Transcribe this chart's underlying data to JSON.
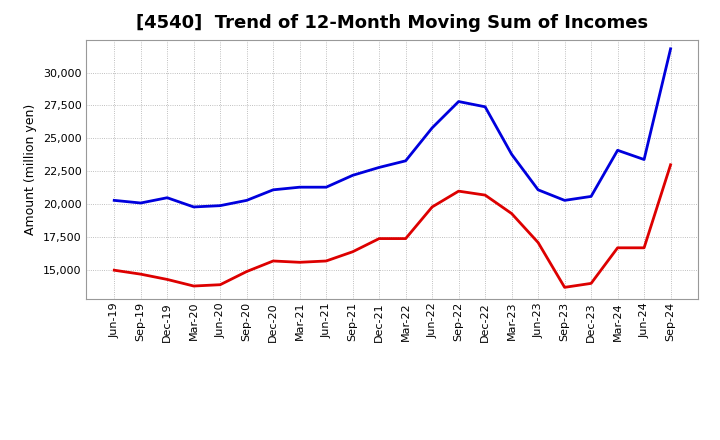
{
  "title": "[4540]  Trend of 12-Month Moving Sum of Incomes",
  "ylabel": "Amount (million yen)",
  "background_color": "#ffffff",
  "plot_background": "#ffffff",
  "grid_color": "#888888",
  "line_color_ordinary": "#0000dd",
  "line_color_net": "#dd0000",
  "x_labels": [
    "Jun-19",
    "Sep-19",
    "Dec-19",
    "Mar-20",
    "Jun-20",
    "Sep-20",
    "Dec-20",
    "Mar-21",
    "Jun-21",
    "Sep-21",
    "Dec-21",
    "Mar-22",
    "Jun-22",
    "Sep-22",
    "Dec-22",
    "Mar-23",
    "Jun-23",
    "Sep-23",
    "Dec-23",
    "Mar-24",
    "Jun-24",
    "Sep-24"
  ],
  "ordinary_income": [
    20300,
    20100,
    20500,
    19800,
    19900,
    20300,
    21100,
    21300,
    21300,
    22200,
    22800,
    23300,
    25800,
    27800,
    27400,
    23800,
    21100,
    20300,
    20600,
    24100,
    23400,
    31800
  ],
  "net_income": [
    15000,
    14700,
    14300,
    13800,
    13900,
    14900,
    15700,
    15600,
    15700,
    16400,
    17400,
    17400,
    19800,
    21000,
    20700,
    19300,
    17100,
    13700,
    14000,
    16700,
    16700,
    23000
  ],
  "ylim_min": 12800,
  "ylim_max": 32500,
  "yticks": [
    15000,
    17500,
    20000,
    22500,
    25000,
    27500,
    30000
  ],
  "title_fontsize": 13,
  "tick_fontsize": 8,
  "ylabel_fontsize": 9,
  "legend_fontsize": 10,
  "linewidth": 2.0
}
